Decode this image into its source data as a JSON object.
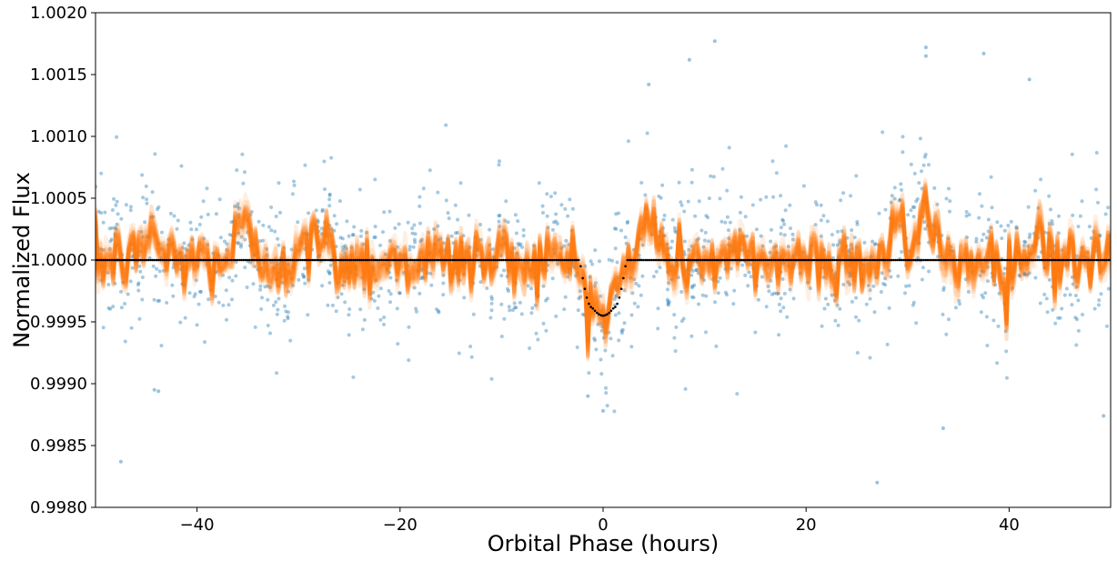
{
  "chart_data": {
    "type": "scatter",
    "title": "",
    "xlabel": "Orbital Phase (hours)",
    "ylabel": "Normalized Flux",
    "xlim": [
      -50,
      50
    ],
    "ylim": [
      0.998,
      1.002
    ],
    "xticks": [
      -40,
      -20,
      0,
      20,
      40
    ],
    "xtick_labels": [
      "−40",
      "−20",
      "0",
      "20",
      "40"
    ],
    "yticks": [
      0.998,
      0.9985,
      0.999,
      0.9995,
      1.0,
      1.0005,
      1.001,
      1.0015,
      1.002
    ],
    "ytick_labels": [
      "0.9980",
      "0.9985",
      "0.9990",
      "0.9995",
      "1.0000",
      "1.0005",
      "1.0010",
      "1.0015",
      "1.0020"
    ],
    "grid": false,
    "legend": "none",
    "colors": {
      "data_points": "#1f77b4",
      "gp_samples": "#ff7f0e",
      "transit_model": "#000000"
    },
    "transit_model": {
      "baseline": 1.0,
      "center_hours": 0.0,
      "depth": 0.00045,
      "total_duration_hours": 4.6,
      "flat_bottom_duration_hours": 2.2,
      "flux_min": 0.99955
    },
    "gp_samples": {
      "count": 30,
      "mean_flux": 1.0,
      "dip_center_hours": 0.0,
      "dip_min_flux": 0.99955,
      "peak_features": [
        {
          "x": -44.5,
          "y": 1.0004
        },
        {
          "x": -35.5,
          "y": 1.0005
        },
        {
          "x": -28,
          "y": 1.0004
        },
        {
          "x": 4.5,
          "y": 1.0007
        },
        {
          "x": 29,
          "y": 1.0006
        },
        {
          "x": 32,
          "y": 1.0007
        },
        {
          "x": 43,
          "y": 1.0004
        }
      ]
    },
    "data_points": {
      "count": 1400,
      "x_range": [
        -50,
        50
      ],
      "scatter_std": 0.0003,
      "highlighted_points": [
        {
          "x": -47.5,
          "y": 0.99837
        },
        {
          "x": 11,
          "y": 1.00177
        },
        {
          "x": 27,
          "y": 0.9982
        },
        {
          "x": 31.8,
          "y": 1.00172
        },
        {
          "x": 31.8,
          "y": 1.00165
        },
        {
          "x": 37.5,
          "y": 1.00167
        },
        {
          "x": 8.5,
          "y": 1.00162
        },
        {
          "x": 33.5,
          "y": 0.99864
        },
        {
          "x": 49.3,
          "y": 0.99874
        },
        {
          "x": 42,
          "y": 1.00146
        },
        {
          "x": 4.5,
          "y": 1.00142
        },
        {
          "x": 0,
          "y": 0.99878
        },
        {
          "x": -1.5,
          "y": 0.9989
        },
        {
          "x": -43.8,
          "y": 0.99894
        },
        {
          "x": -44.2,
          "y": 0.99895
        }
      ]
    }
  }
}
